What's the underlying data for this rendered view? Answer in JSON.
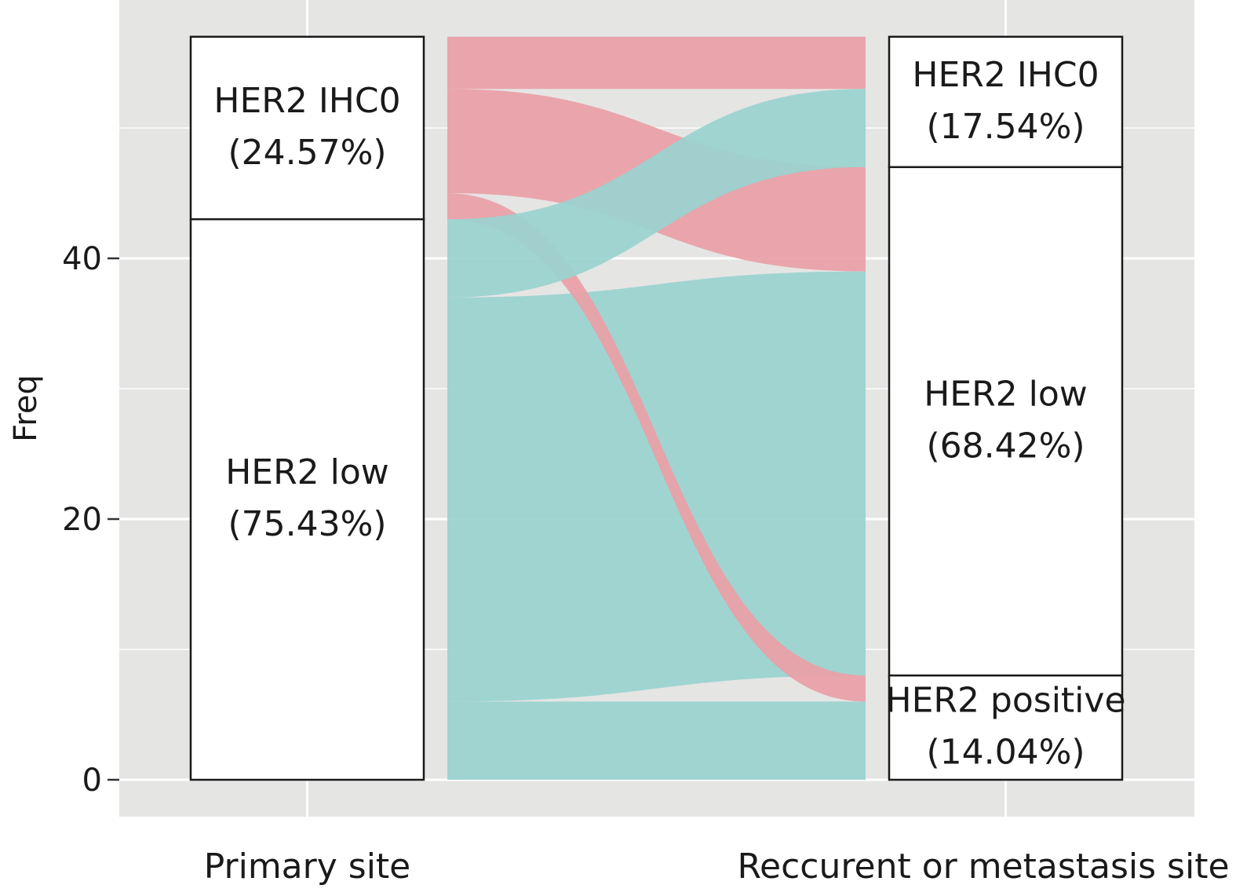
{
  "chart_data": {
    "type": "alluvial",
    "ylabel": "Freq",
    "ylim": [
      0,
      60
    ],
    "yticks": [
      0,
      20,
      40
    ],
    "grid": true,
    "axes": [
      {
        "label": "Primary site",
        "strata": [
          {
            "label": "HER2 IHC0",
            "pct": "(24.57%)",
            "count": 14
          },
          {
            "label": "HER2 low",
            "pct": "(75.43%)",
            "count": 43
          }
        ]
      },
      {
        "label": "Reccurent or metastasis site",
        "strata": [
          {
            "label": "HER2 IHC0",
            "pct": "(17.54%)",
            "count": 10
          },
          {
            "label": "HER2 low",
            "pct": "(68.42%)",
            "count": 39
          },
          {
            "label": "HER2 positive",
            "pct": "(14.04%)",
            "count": 8
          }
        ]
      }
    ],
    "flows": [
      {
        "from": "HER2 IHC0",
        "to": "HER2 IHC0",
        "value": 4,
        "group": "HER2 IHC0"
      },
      {
        "from": "HER2 IHC0",
        "to": "HER2 low",
        "value": 8,
        "group": "HER2 IHC0"
      },
      {
        "from": "HER2 IHC0",
        "to": "HER2 positive",
        "value": 2,
        "group": "HER2 IHC0"
      },
      {
        "from": "HER2 low",
        "to": "HER2 IHC0",
        "value": 6,
        "group": "HER2 low"
      },
      {
        "from": "HER2 low",
        "to": "HER2 low",
        "value": 31,
        "group": "HER2 low"
      },
      {
        "from": "HER2 low",
        "to": "HER2 positive",
        "value": 6,
        "group": "HER2 low"
      }
    ],
    "colors": {
      "HER2 IHC0": "#e9a0a6",
      "HER2 low": "#99d3cf",
      "panel_bg": "#e5e5e4",
      "gridline": "#ffffff",
      "stratum_fill": "#ffffff",
      "stratum_stroke": "#1a1a1a"
    }
  }
}
